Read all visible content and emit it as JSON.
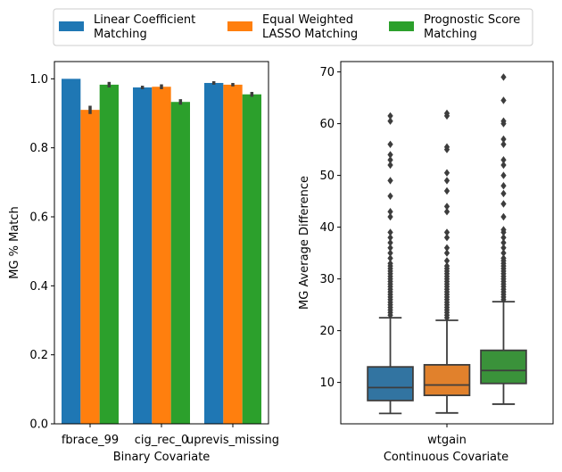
{
  "legend": {
    "placement": "top-center",
    "entries": [
      {
        "label_lines": [
          "Linear Coefficient",
          "Matching"
        ],
        "color": "#1f77b4"
      },
      {
        "label_lines": [
          "Equal Weighted",
          "LASSO Matching"
        ],
        "color": "#ff7f0e"
      },
      {
        "label_lines": [
          "Prognostic Score",
          "Matching"
        ],
        "color": "#2ca02c"
      }
    ]
  },
  "chart_data": [
    {
      "type": "bar",
      "xlabel": "Binary Covariate",
      "ylabel": "MG % Match",
      "ylim": [
        0,
        1.05
      ],
      "yticks": [
        0.0,
        0.2,
        0.4,
        0.6,
        0.8,
        1.0
      ],
      "ytick_labels": [
        "0.0",
        "0.2",
        "0.4",
        "0.6",
        "0.8",
        "1.0"
      ],
      "categories": [
        "fbrace_99",
        "cig_rec_0",
        "uprevis_missing"
      ],
      "series": [
        {
          "name": "Linear Coefficient Matching",
          "color": "#1f77b4",
          "values": [
            1.0,
            0.975,
            0.988
          ],
          "err": [
            0.0,
            0.005,
            0.005
          ]
        },
        {
          "name": "Equal Weighted LASSO Matching",
          "color": "#ff7f0e",
          "values": [
            0.91,
            0.977,
            0.983
          ],
          "err": [
            0.012,
            0.007,
            0.005
          ]
        },
        {
          "name": "Prognostic Score Matching",
          "color": "#2ca02c",
          "values": [
            0.983,
            0.933,
            0.955
          ],
          "err": [
            0.008,
            0.008,
            0.007
          ]
        }
      ]
    },
    {
      "type": "box",
      "xlabel": "Continuous Covariate",
      "ylabel": "MG Average Difference",
      "ylim": [
        2,
        72
      ],
      "yticks": [
        10,
        20,
        30,
        40,
        50,
        60,
        70
      ],
      "ytick_labels": [
        "10",
        "20",
        "30",
        "40",
        "50",
        "60",
        "70"
      ],
      "categories": [
        "wtgain"
      ],
      "series": [
        {
          "name": "Linear Coefficient Matching",
          "color": "#3274a1",
          "min": 4.0,
          "q1": 6.5,
          "median": 9.0,
          "q3": 13.0,
          "max": 22.5,
          "outliers": [
            23,
            23.5,
            24,
            24.5,
            25,
            25.5,
            26,
            26.5,
            27,
            27.5,
            28,
            28.5,
            29,
            29.5,
            30,
            30.5,
            31,
            31.5,
            32,
            32.5,
            33,
            34,
            35,
            36,
            37,
            38,
            39,
            42,
            43,
            46,
            49,
            52,
            53,
            54,
            56,
            60.5,
            61.5
          ]
        },
        {
          "name": "Equal Weighted LASSO Matching",
          "color": "#e1812c",
          "min": 4.1,
          "q1": 7.5,
          "median": 9.5,
          "q3": 13.4,
          "max": 22.0,
          "outliers": [
            22.5,
            23,
            23.5,
            24,
            24.5,
            25,
            25.5,
            26,
            26.5,
            27,
            27.5,
            28,
            28.5,
            29,
            29.5,
            30,
            30.5,
            31,
            31.5,
            32,
            32.5,
            33.5,
            35,
            36,
            38,
            39,
            43,
            44,
            47,
            49,
            50.5,
            55,
            55.5,
            61.5,
            62
          ]
        },
        {
          "name": "Prognostic Score Matching",
          "color": "#3a923a",
          "min": 5.8,
          "q1": 9.8,
          "median": 12.3,
          "q3": 16.2,
          "max": 25.6,
          "outliers": [
            26,
            26.5,
            27,
            27.5,
            28,
            28.5,
            29,
            29.5,
            30,
            30.5,
            31,
            31.5,
            32,
            32.5,
            33,
            33.5,
            34,
            35,
            36,
            37,
            38,
            39,
            39.5,
            42,
            44.5,
            46.5,
            48,
            50,
            52,
            53,
            56,
            57,
            60,
            60.5,
            64.5,
            69
          ]
        }
      ]
    }
  ]
}
